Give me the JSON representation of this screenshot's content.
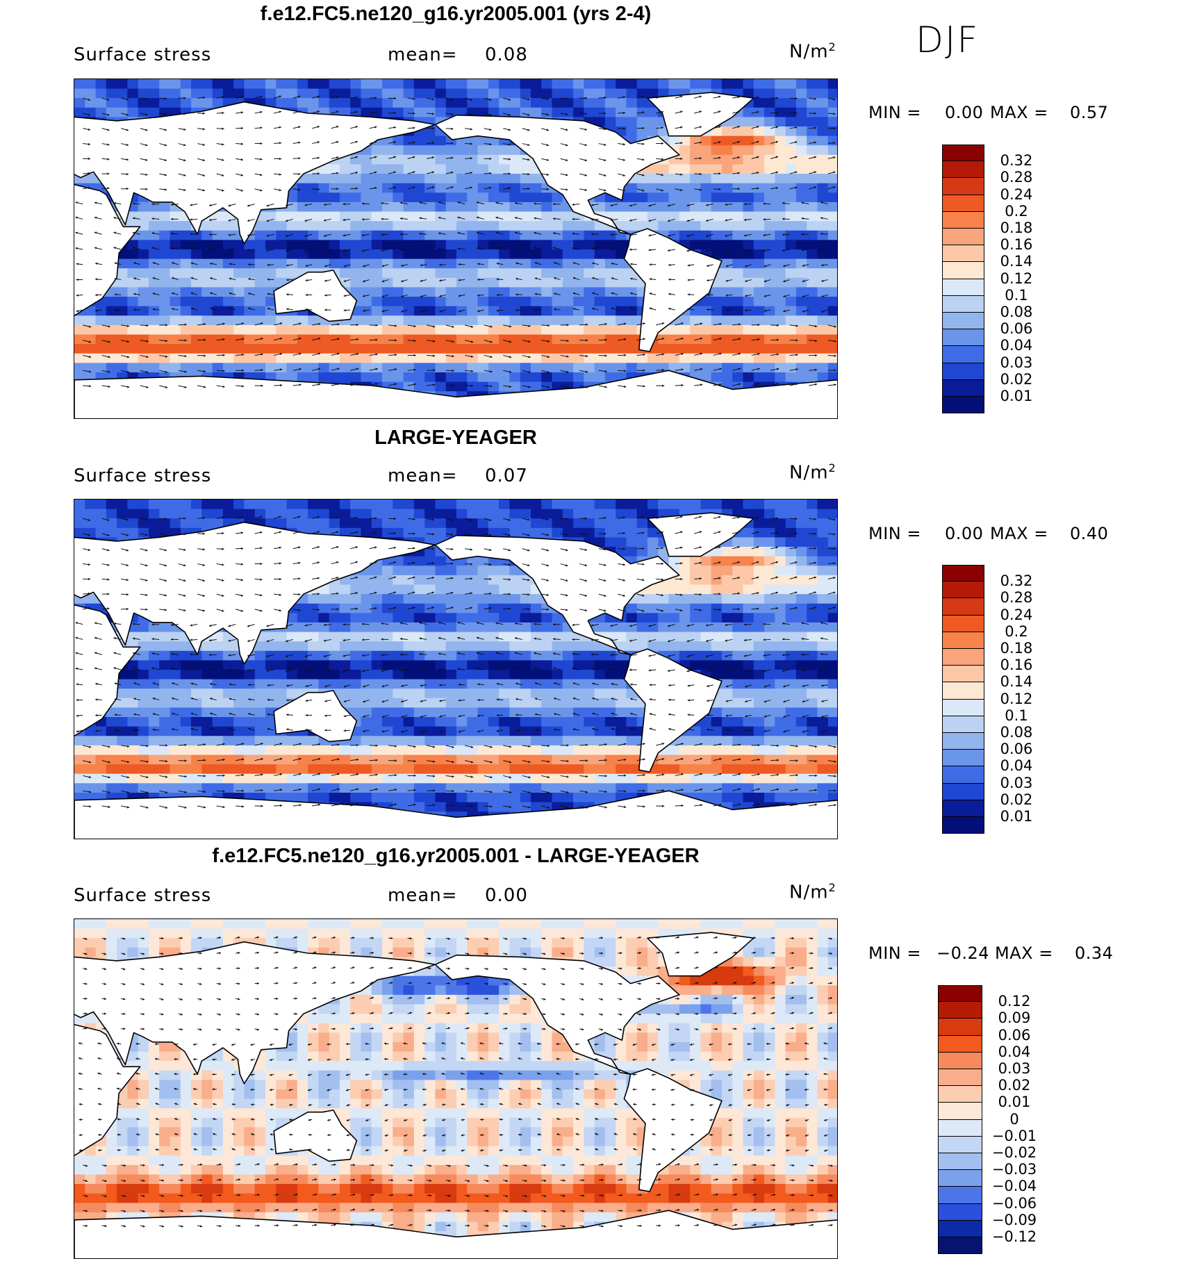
{
  "season": "DJF",
  "panels": [
    {
      "title": "f.e12.FC5.ne120_g16.yr2005.001 (yrs 2-4)",
      "variable": "Surface stress",
      "mean_label": "mean=",
      "mean_value": "0.08",
      "units_base": "N/m",
      "units_exp": "2",
      "min_label": "MIN =",
      "min_value": "0.00",
      "max_label": "MAX =",
      "max_value": "0.57",
      "palette": "abs",
      "colorbar_levels": [
        "0.32",
        "0.28",
        "0.24",
        "0.2",
        "0.18",
        "0.16",
        "0.14",
        "0.12",
        "0.1",
        "0.08",
        "0.06",
        "0.04",
        "0.03",
        "0.02",
        "0.01"
      ]
    },
    {
      "title": "LARGE-YEAGER",
      "variable": "Surface stress",
      "mean_label": "mean=",
      "mean_value": "0.07",
      "units_base": "N/m",
      "units_exp": "2",
      "min_label": "MIN =",
      "min_value": "0.00",
      "max_label": "MAX =",
      "max_value": "0.40",
      "palette": "abs",
      "colorbar_levels": [
        "0.32",
        "0.28",
        "0.24",
        "0.2",
        "0.18",
        "0.16",
        "0.14",
        "0.12",
        "0.1",
        "0.08",
        "0.06",
        "0.04",
        "0.03",
        "0.02",
        "0.01"
      ]
    },
    {
      "title": "f.e12.FC5.ne120_g16.yr2005.001 - LARGE-YEAGER",
      "variable": "Surface stress",
      "mean_label": "mean=",
      "mean_value": "0.00",
      "units_base": "N/m",
      "units_exp": "2",
      "min_label": "MIN =",
      "min_value": "−0.24",
      "max_label": "MAX =",
      "max_value": "0.34",
      "palette": "diff",
      "colorbar_levels": [
        "0.12",
        "0.09",
        "0.06",
        "0.04",
        "0.03",
        "0.02",
        "0.01",
        "0",
        "−0.01",
        "−0.02",
        "−0.03",
        "−0.04",
        "−0.06",
        "−0.09",
        "−0.12"
      ]
    }
  ],
  "colors": {
    "abs_palette": [
      "#8b0000",
      "#b41a08",
      "#d63a14",
      "#ee5a24",
      "#f7824a",
      "#f9a47a",
      "#fcc8a8",
      "#fde8d4",
      "#dbe8f7",
      "#bcd2f2",
      "#93b5ee",
      "#6b95ea",
      "#3f6ce6",
      "#1f47d2",
      "#0a1c99",
      "#03107a"
    ],
    "diff_palette": [
      "#8b0000",
      "#b51c06",
      "#d83b10",
      "#f35a1e",
      "#f78a5c",
      "#f9ad8a",
      "#fccdb1",
      "#fde7d7",
      "#dde9f7",
      "#c3d6f4",
      "#a2bff0",
      "#7aa1ec",
      "#4c76e8",
      "#2a50dc",
      "#0d2aa8",
      "#041470"
    ],
    "land": "#ffffff",
    "coast": "#000000"
  }
}
